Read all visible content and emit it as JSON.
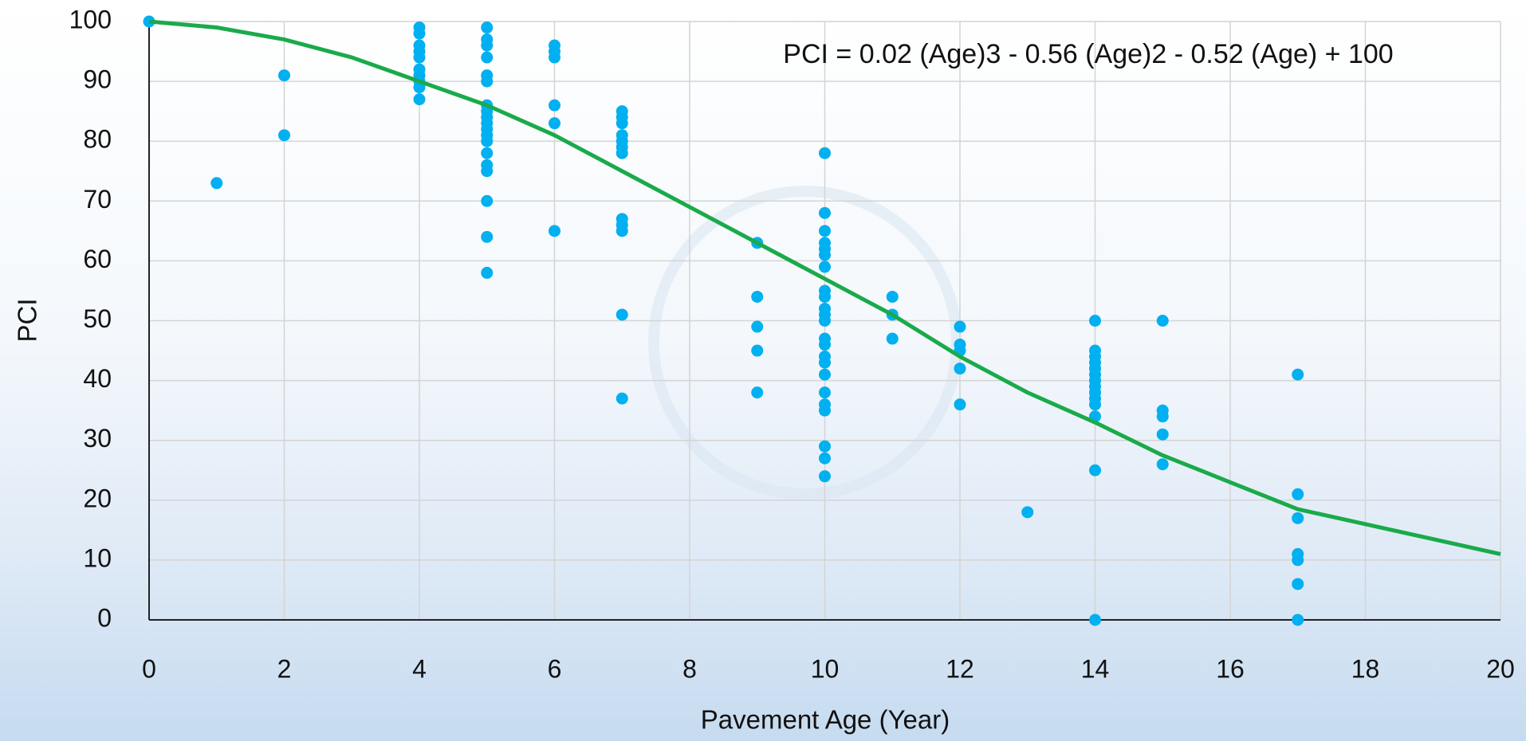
{
  "chart_data": {
    "type": "scatter",
    "annotation": "PCI = 0.02 (Age)3 - 0.56 (Age)2 - 0.52 (Age) + 100",
    "x_label": "Pavement Age (Year)",
    "y_label": "PCI",
    "xlim": [
      0,
      20
    ],
    "xticks": [
      0,
      2,
      4,
      6,
      8,
      10,
      12,
      14,
      16,
      18,
      20
    ],
    "ylim": [
      0,
      100
    ],
    "yticks": [
      0,
      10,
      20,
      30,
      40,
      50,
      60,
      70,
      80,
      90,
      100
    ],
    "grid": true,
    "series": [
      {
        "type": "scatter",
        "color": "#00b0f0",
        "x": [
          0,
          1,
          2,
          2,
          4,
          4,
          4,
          4,
          4,
          4,
          4,
          4,
          4,
          4,
          5,
          5,
          5,
          5,
          5,
          5,
          5,
          5,
          5,
          5,
          5,
          5,
          5,
          5,
          5,
          5,
          5,
          5,
          5,
          6,
          6,
          6,
          6,
          6,
          6,
          7,
          7,
          7,
          7,
          7,
          7,
          7,
          7,
          7,
          7,
          7,
          7,
          9,
          9,
          9,
          9,
          9,
          10,
          10,
          10,
          10,
          10,
          10,
          10,
          10,
          10,
          10,
          10,
          10,
          10,
          10,
          10,
          10,
          10,
          10,
          10,
          10,
          10,
          10,
          10,
          11,
          11,
          11,
          12,
          12,
          12,
          12,
          12,
          13,
          14,
          14,
          14,
          14,
          14,
          14,
          14,
          14,
          14,
          14,
          14,
          14,
          14,
          14,
          15,
          15,
          15,
          15,
          15,
          17,
          17,
          17,
          17,
          17,
          17,
          17
        ],
        "values": [
          100,
          73,
          91,
          81,
          99,
          98,
          96,
          95,
          94,
          92,
          91,
          90,
          89,
          87,
          99,
          97,
          96,
          94,
          91,
          90,
          86,
          85,
          84,
          83,
          82,
          81,
          80,
          78,
          76,
          75,
          70,
          64,
          58,
          96,
          95,
          94,
          86,
          83,
          65,
          85,
          84,
          83,
          81,
          80,
          79,
          78,
          67,
          66,
          65,
          51,
          37,
          63,
          54,
          49,
          45,
          38,
          78,
          68,
          65,
          63,
          62,
          61,
          59,
          55,
          54,
          52,
          51,
          50,
          47,
          46,
          44,
          43,
          41,
          38,
          36,
          35,
          29,
          27,
          24,
          54,
          51,
          47,
          49,
          46,
          45,
          42,
          36,
          18,
          50,
          45,
          44,
          43,
          42,
          41,
          40,
          39,
          38,
          37,
          36,
          34,
          25,
          0,
          50,
          35,
          34,
          31,
          26,
          41,
          21,
          17,
          11,
          10,
          6,
          0
        ]
      },
      {
        "type": "line",
        "color": "#1aaa4a",
        "x": [
          0,
          1,
          2,
          3,
          4,
          5,
          6,
          7,
          8,
          9,
          10,
          11,
          12,
          13,
          14,
          15,
          16,
          17,
          18,
          19,
          20
        ],
        "values": [
          100,
          99,
          97,
          94,
          90,
          86,
          81,
          75,
          69,
          63,
          57,
          51,
          44,
          38,
          33,
          27.5,
          23,
          18.5,
          16,
          13.5,
          11
        ]
      }
    ]
  }
}
